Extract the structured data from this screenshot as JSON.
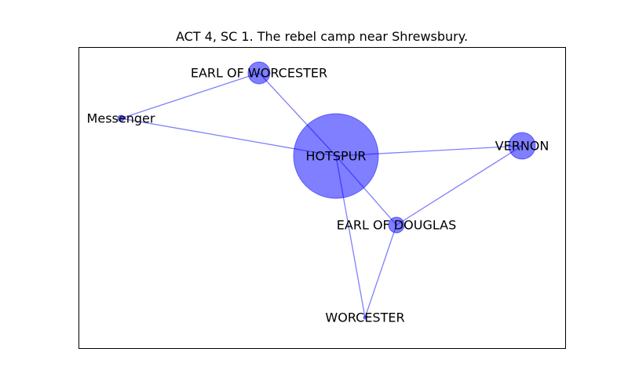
{
  "title": "ACT 4, SC 1. The rebel camp near Shrewsbury.",
  "style": {
    "node_color": "#0000ff",
    "node_opacity": 0.5,
    "edge_color": "#0000ff",
    "edge_opacity": 0.5,
    "frame_color": "#000000"
  },
  "nodes": [
    {
      "id": "hotspur",
      "label": "HOTSPUR"
    },
    {
      "id": "worcester_earl",
      "label": "EARL OF WORCESTER"
    },
    {
      "id": "messenger",
      "label": "Messenger"
    },
    {
      "id": "vernon",
      "label": "VERNON"
    },
    {
      "id": "douglas",
      "label": "EARL OF DOUGLAS"
    },
    {
      "id": "worcester",
      "label": "WORCESTER"
    }
  ],
  "edges": [
    {
      "source": "messenger",
      "target": "worcester_earl"
    },
    {
      "source": "messenger",
      "target": "hotspur"
    },
    {
      "source": "worcester_earl",
      "target": "hotspur"
    },
    {
      "source": "hotspur",
      "target": "vernon"
    },
    {
      "source": "hotspur",
      "target": "douglas"
    },
    {
      "source": "hotspur",
      "target": "worcester"
    },
    {
      "source": "vernon",
      "target": "douglas"
    },
    {
      "source": "douglas",
      "target": "worcester"
    }
  ]
}
